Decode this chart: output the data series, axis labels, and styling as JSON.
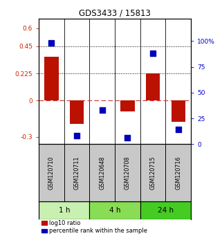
{
  "title": "GDS3433 / 15813",
  "samples": [
    "GSM120710",
    "GSM120711",
    "GSM120648",
    "GSM120708",
    "GSM120715",
    "GSM120716"
  ],
  "log10_ratio": [
    0.36,
    -0.19,
    0.003,
    -0.09,
    0.225,
    -0.175
  ],
  "percentile_rank": [
    98,
    8,
    33,
    6,
    88,
    14
  ],
  "time_groups": [
    {
      "label": "1 h",
      "cols": [
        0,
        1
      ],
      "color": "#c8f0b0"
    },
    {
      "label": "4 h",
      "cols": [
        2,
        3
      ],
      "color": "#88dd55"
    },
    {
      "label": "24 h",
      "cols": [
        4,
        5
      ],
      "color": "#44cc22"
    }
  ],
  "ylim_left": [
    -0.36,
    0.68
  ],
  "ylim_right": [
    0,
    122
  ],
  "yticks_left": [
    -0.3,
    0,
    0.225,
    0.45,
    0.6
  ],
  "ytick_labels_left": [
    "-0.3",
    "0",
    "0.225",
    "0.45",
    "0.6"
  ],
  "yticks_right": [
    0,
    25,
    50,
    75,
    100
  ],
  "ytick_labels_right": [
    "0",
    "25",
    "50",
    "75",
    "100%"
  ],
  "hlines": [
    0.225,
    0.45
  ],
  "bar_color": "#bb1100",
  "dot_color": "#0000bb",
  "bar_width": 0.55,
  "dot_size": 28,
  "bg_color": "#ffffff",
  "plot_bg": "#ffffff",
  "label_bg": "#c8c8c8",
  "time_border": "#000000"
}
